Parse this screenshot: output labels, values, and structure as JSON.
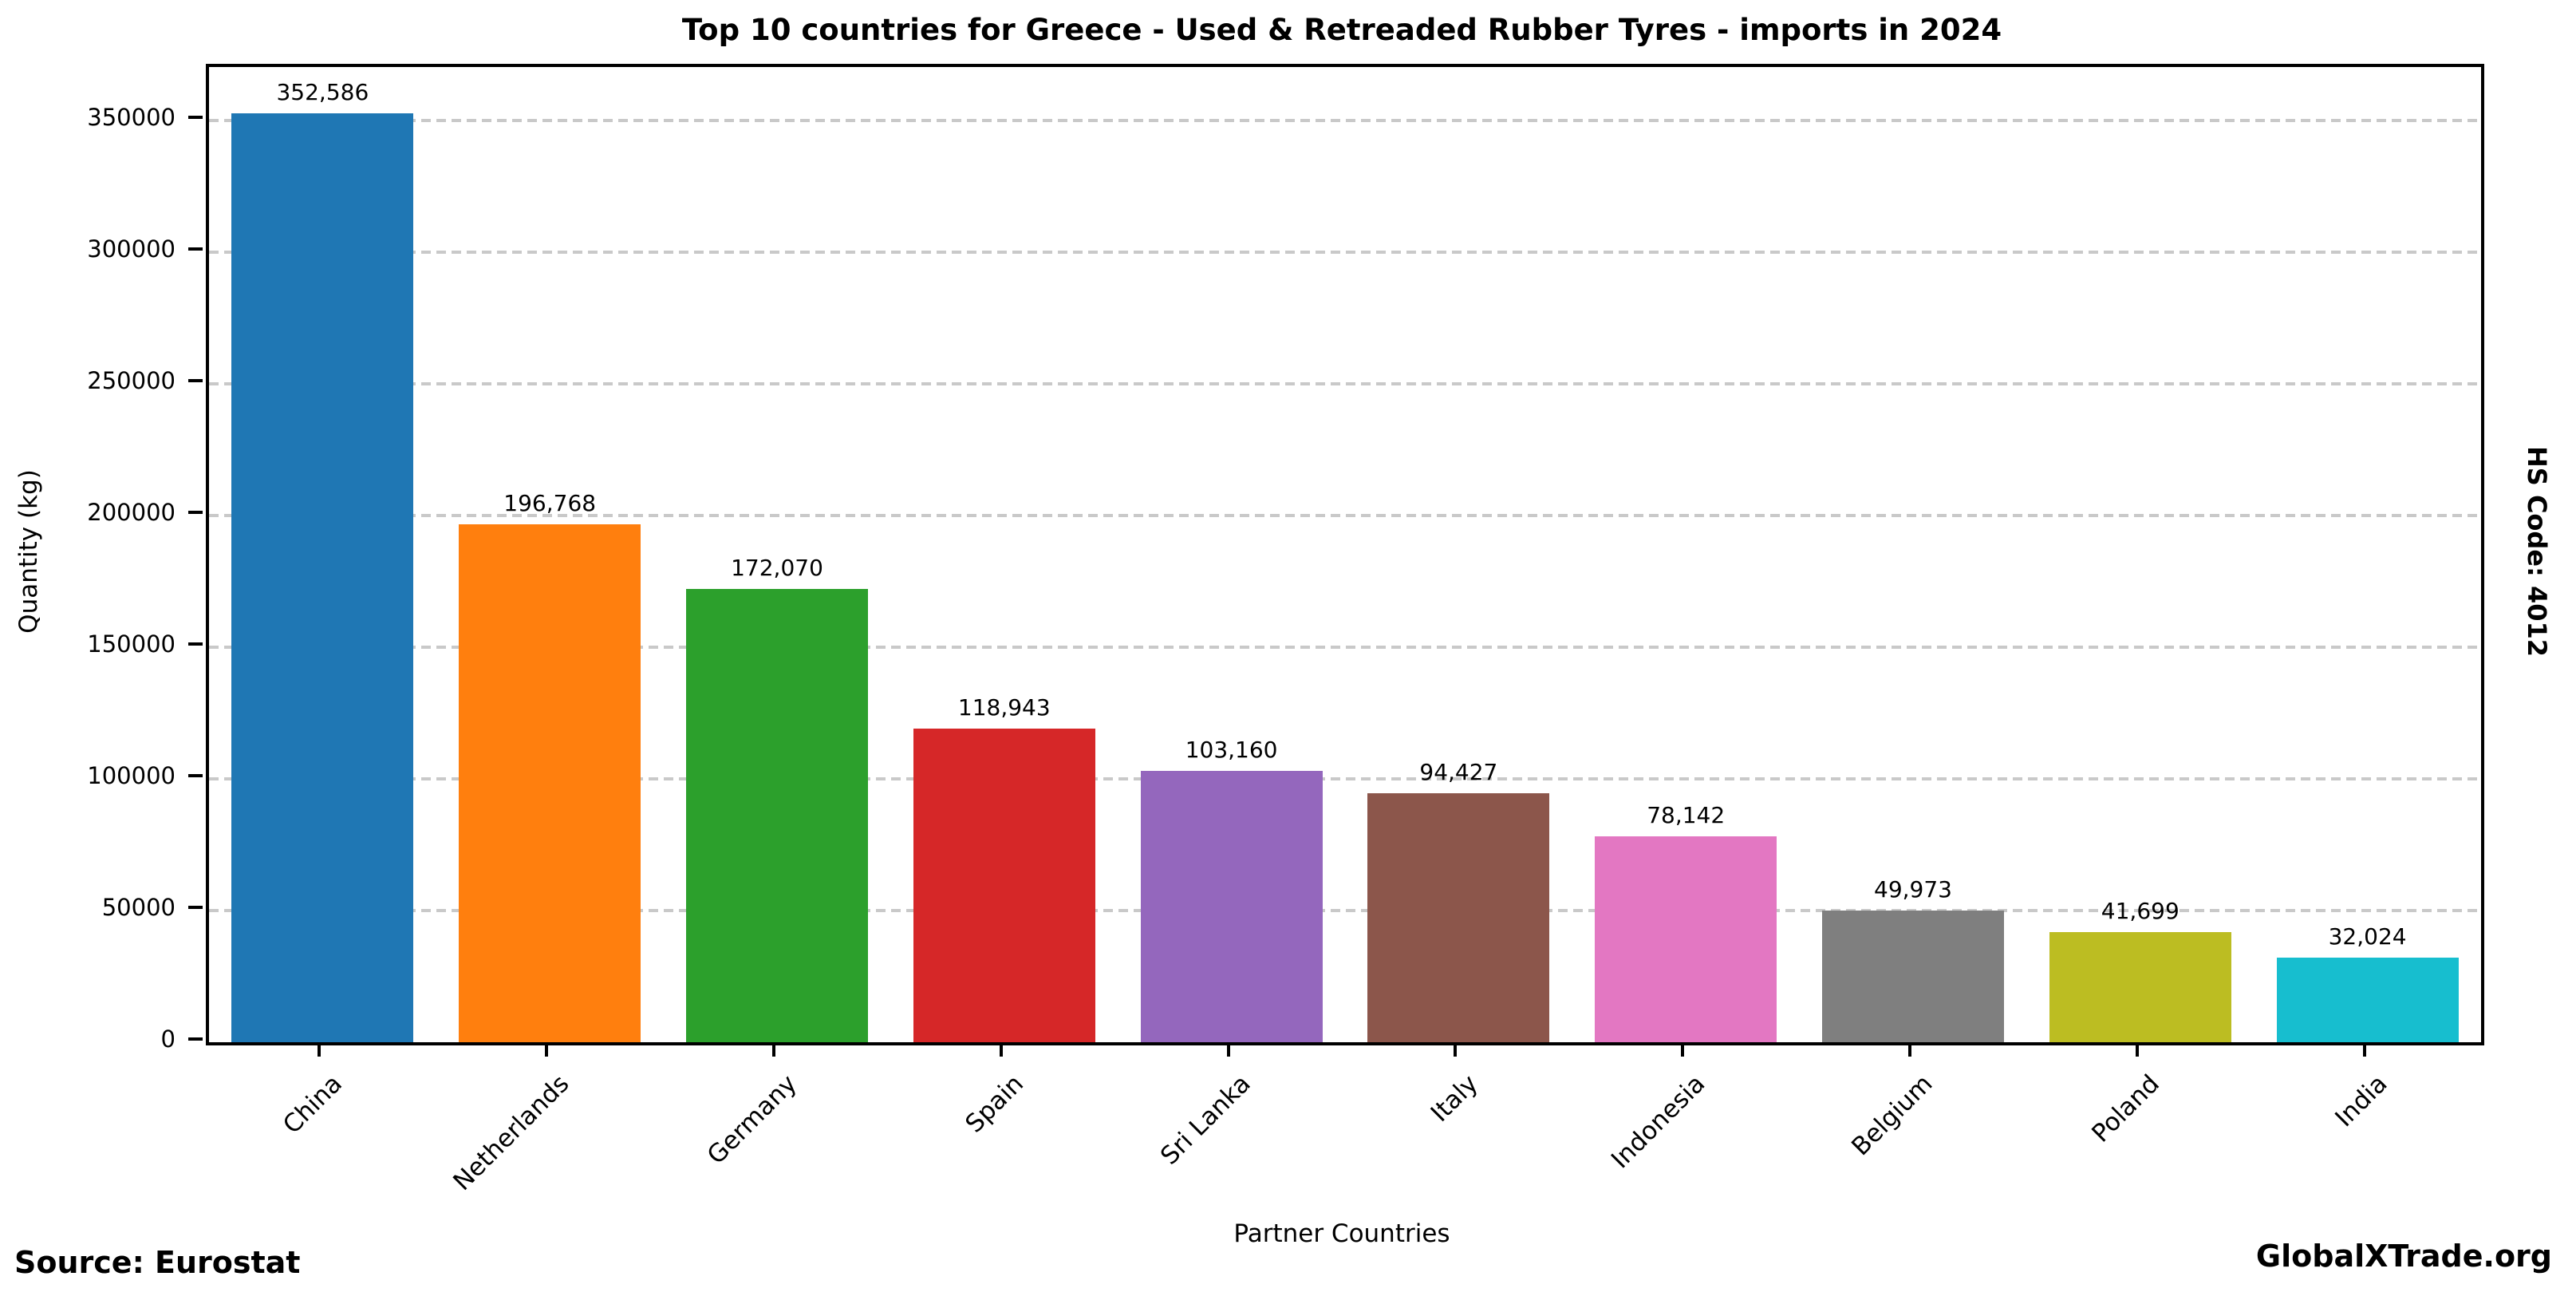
{
  "figure": {
    "footer_left": "Source: Eurostat",
    "footer_right": "GlobalXTrade.org",
    "side_label": "HS Code: 4012"
  },
  "chart_data": {
    "type": "bar",
    "title": "Top 10 countries for Greece - Used & Retreaded Rubber Tyres - imports in 2024",
    "xlabel": "Partner Countries",
    "ylabel": "Quantity (kg)",
    "categories": [
      "China",
      "Netherlands",
      "Germany",
      "Spain",
      "Sri Lanka",
      "Italy",
      "Indonesia",
      "Belgium",
      "Poland",
      "India"
    ],
    "values": [
      352586,
      196768,
      172070,
      118943,
      103160,
      94427,
      78142,
      49973,
      41699,
      32024
    ],
    "value_labels": [
      "352,586",
      "196,768",
      "172,070",
      "118,943",
      "103,160",
      "94,427",
      "78,142",
      "49,973",
      "41,699",
      "32,024"
    ],
    "bar_colors": [
      "#1f77b4",
      "#ff7f0e",
      "#2ca02c",
      "#d62728",
      "#9467bd",
      "#8c564b",
      "#e377c2",
      "#7f7f7f",
      "#bcbd22",
      "#17becf"
    ],
    "yticks": [
      0,
      50000,
      100000,
      150000,
      200000,
      250000,
      300000,
      350000
    ],
    "ylim": [
      0,
      370215
    ],
    "bar_width_fraction": 0.8,
    "grid": {
      "axis": "y",
      "style": "dashed",
      "color": "#c9c9c9"
    },
    "legend": "none",
    "x_tick_rotation_deg": 45
  }
}
